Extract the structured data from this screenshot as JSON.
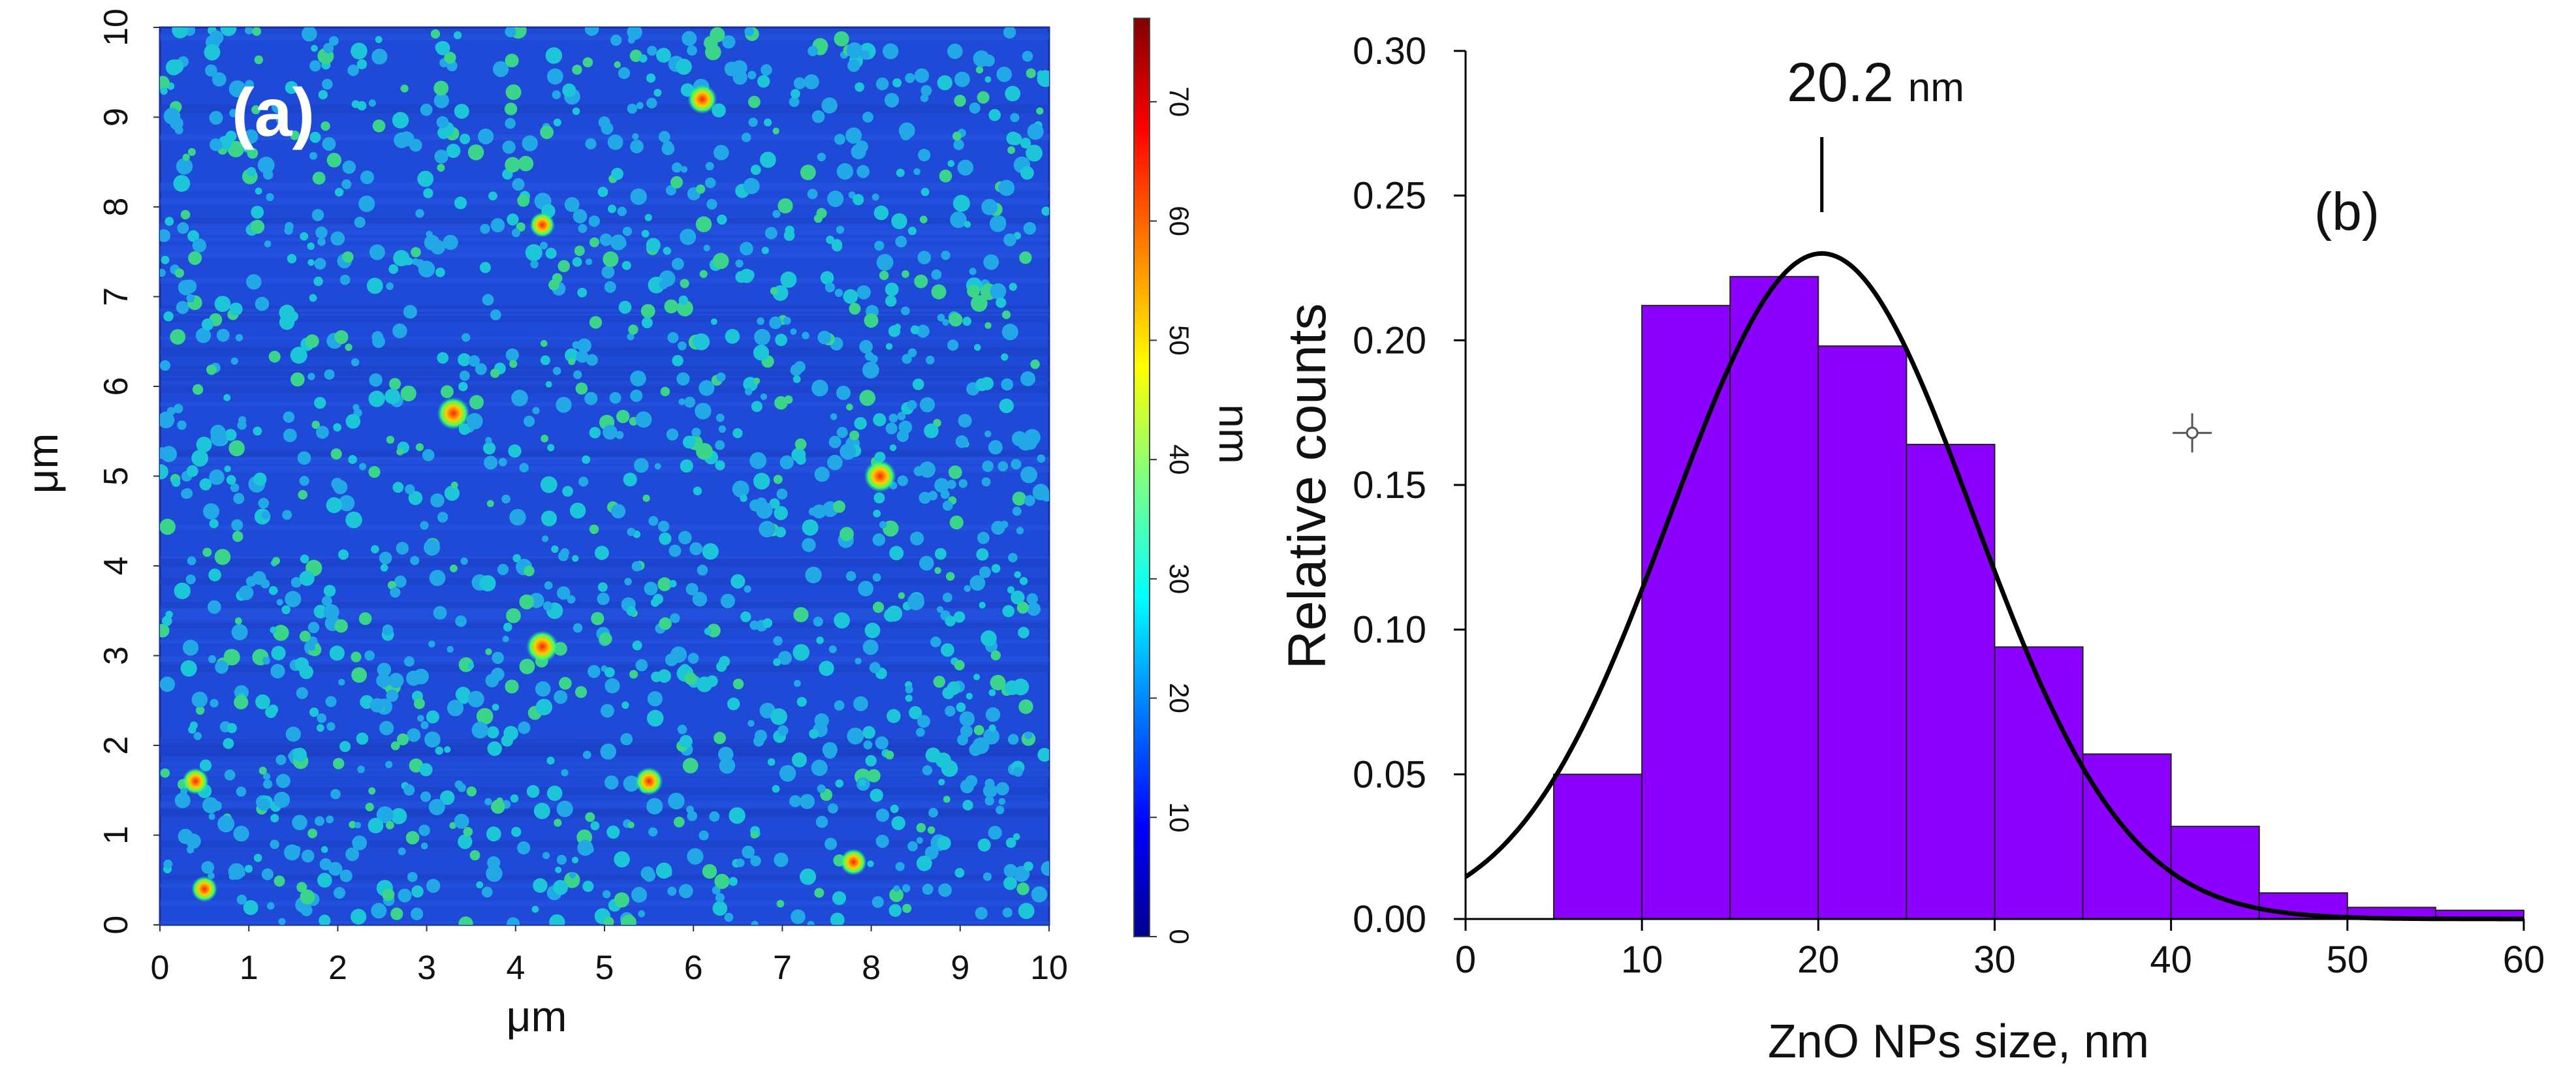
{
  "colors": {
    "bar_fill": "#8b00ff",
    "bar_stroke": "#222222",
    "fit_line": "#000000",
    "afm_base": "#1f4ad8",
    "afm_particle": "#19c3d6"
  },
  "chart_data": [
    {
      "type": "heatmap",
      "panel_label": "(a)",
      "x": {
        "ticks": [
          "0",
          "1",
          "2",
          "3",
          "4",
          "5",
          "6",
          "7",
          "8",
          "9",
          "10"
        ],
        "range": [
          0,
          10
        ],
        "label": "μm"
      },
      "y": {
        "ticks": [
          "0",
          "1",
          "2",
          "3",
          "4",
          "5",
          "6",
          "7",
          "8",
          "9",
          "10"
        ],
        "range": [
          0,
          10
        ],
        "label": "μm"
      },
      "colorbar": {
        "ticks": [
          "0",
          "10",
          "20",
          "30",
          "40",
          "50",
          "60",
          "70"
        ],
        "range": [
          0,
          77
        ],
        "label": "nm",
        "colors": [
          "#00008f",
          "#0000ff",
          "#0080ff",
          "#00ffff",
          "#80ff80",
          "#ffff00",
          "#ff8000",
          "#ff0000",
          "#800000"
        ]
      },
      "hot_spots": [
        {
          "x": 3.3,
          "y": 5.7,
          "z": 72
        },
        {
          "x": 4.3,
          "y": 3.1,
          "z": 70
        },
        {
          "x": 8.1,
          "y": 5.0,
          "z": 70
        },
        {
          "x": 6.1,
          "y": 9.2,
          "z": 60
        },
        {
          "x": 5.5,
          "y": 1.6,
          "z": 55
        },
        {
          "x": 0.4,
          "y": 1.6,
          "z": 50
        },
        {
          "x": 7.8,
          "y": 0.7,
          "z": 50
        },
        {
          "x": 0.5,
          "y": 0.4,
          "z": 48
        },
        {
          "x": 4.3,
          "y": 7.8,
          "z": 45
        }
      ]
    },
    {
      "type": "bar",
      "panel_label": "(b)",
      "xlabel": "ZnO NPs size, nm",
      "ylabel": "Relative counts",
      "xlim": [
        0,
        60
      ],
      "ylim": [
        0,
        0.3
      ],
      "x_ticks": [
        "0",
        "10",
        "20",
        "30",
        "40",
        "50",
        "60"
      ],
      "y_ticks": [
        "0.00",
        "0.05",
        "0.10",
        "0.15",
        "0.20",
        "0.25",
        "0.30"
      ],
      "bins": [
        {
          "from": 5,
          "to": 10,
          "value": 0.05
        },
        {
          "from": 10,
          "to": 15,
          "value": 0.212
        },
        {
          "from": 15,
          "to": 20,
          "value": 0.222
        },
        {
          "from": 20,
          "to": 25,
          "value": 0.198
        },
        {
          "from": 25,
          "to": 30,
          "value": 0.164
        },
        {
          "from": 30,
          "to": 35,
          "value": 0.094
        },
        {
          "from": 35,
          "to": 40,
          "value": 0.057
        },
        {
          "from": 40,
          "to": 45,
          "value": 0.032
        },
        {
          "from": 45,
          "to": 50,
          "value": 0.009
        },
        {
          "from": 50,
          "to": 55,
          "value": 0.004
        },
        {
          "from": 55,
          "to": 60,
          "value": 0.003
        }
      ],
      "fit": {
        "type": "gaussian",
        "peak_x": 20.2,
        "peak_y": 0.23,
        "sigma": 8.6
      },
      "annotation": {
        "value": "20.2",
        "unit": "nm",
        "x": 20.2
      },
      "marker_point": {
        "x": 41.2,
        "y": 0.168
      }
    }
  ]
}
